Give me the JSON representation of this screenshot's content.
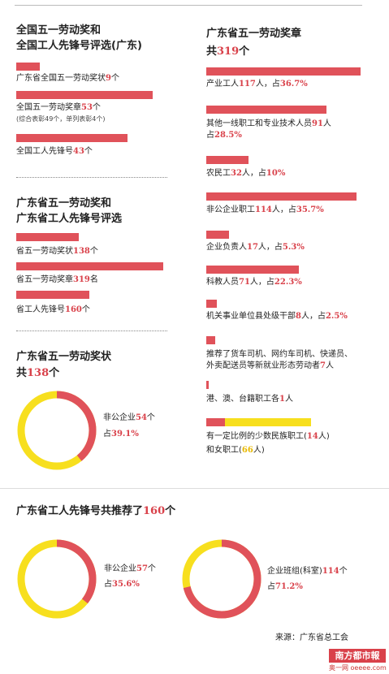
{
  "left": {
    "national": {
      "title1": "全国五一劳动奖和",
      "title2": "全国工人先锋号评选(广东)",
      "items": [
        {
          "pre": "广东省全国五一劳动奖状",
          "num": "9",
          "suf": "个",
          "value": 9
        },
        {
          "pre": "全国五一劳动奖章",
          "num": "53",
          "suf": "个",
          "value": 53,
          "note": "(综合表彰49个，单列表彰4个)"
        },
        {
          "pre": "全国工人先锋号",
          "num": "43",
          "suf": "个",
          "value": 43
        }
      ]
    },
    "provincial": {
      "title1": "广东省五一劳动奖和",
      "title2": "广东省工人先锋号评选",
      "items": [
        {
          "pre": "省五一劳动奖状",
          "num": "138",
          "suf": "个",
          "value": 138
        },
        {
          "pre": "省五一劳动奖章",
          "num": "319",
          "suf": "名",
          "value": 319
        },
        {
          "pre": "省工人先锋号",
          "num": "160",
          "suf": "个",
          "value": 160
        }
      ]
    },
    "award_donut": {
      "title": "广东省五一劳动奖状",
      "total_pre": "共",
      "total_num": "138",
      "total_suf": "个",
      "label_pre": "非公企业",
      "label_num": "54",
      "label_suf": "个",
      "pct_pre": "占",
      "pct_num": "39.1%",
      "percent": 39.1
    }
  },
  "right": {
    "title1": "广东省五一劳动奖章",
    "total_pre": "共",
    "total_num": "319",
    "total_suf": "个",
    "items": [
      {
        "pre": "产业工人",
        "num": "117",
        "mid": "人，占",
        "pct": "36.7%",
        "value": 117
      },
      {
        "pre": "其他一线职工和专业技术人员",
        "num": "91",
        "mid": "人",
        "line2_pre": "占",
        "pct": "28.5%",
        "value": 91
      },
      {
        "pre": "农民工",
        "num": "32",
        "mid": "人，占",
        "pct": "10%",
        "value": 32
      },
      {
        "pre": "非公企业职工",
        "num": "114",
        "mid": "人，占",
        "pct": "35.7%",
        "value": 114
      },
      {
        "pre": "企业负责人",
        "num": "17",
        "mid": "人，占",
        "pct": "5.3%",
        "value": 17
      },
      {
        "pre": "科教人员",
        "num": "71",
        "mid": "人，占",
        "pct": "22.3%",
        "value": 71
      },
      {
        "pre": "机关事业单位县处级干部",
        "num": "8",
        "mid": "人，占",
        "pct": "2.5%",
        "value": 8
      },
      {
        "line1": "推荐了货车司机、网约车司机、快递员、",
        "pre": "外卖配送员等新就业形态劳动者",
        "num": "7",
        "mid": "人",
        "value": 7
      },
      {
        "pre": "港、澳、台籍职工各",
        "num": "1",
        "mid": "人",
        "value": 1
      }
    ],
    "minority": {
      "pre": "有一定比例的少数民族职工(",
      "num": "14",
      "suf": "人)",
      "pre2": "和女职工(",
      "num2": "66",
      "suf2": "人)",
      "value_minority": 14,
      "value_women": 66
    }
  },
  "bottom": {
    "title_pre": "广东省工人先锋号共推荐了",
    "title_num": "160",
    "title_suf": "个",
    "donut1": {
      "pre": "非公企业",
      "num": "57",
      "suf": "个",
      "pct_pre": "占",
      "pct": "35.6%",
      "percent": 35.6
    },
    "donut2": {
      "pre": "企业班组(科室)",
      "num": "114",
      "suf": "个",
      "pct_pre": "占",
      "pct": "71.2%",
      "percent": 71.2
    }
  },
  "source": "来源：广东省总工会",
  "logo": "南方都市報",
  "logo_sub": "奥一网 oeeee.com",
  "colors": {
    "red": "#e0525a",
    "yellow": "#f7df1e",
    "text_red": "#d9414a"
  },
  "chart_data": [
    {
      "type": "bar",
      "title": "全国五一劳动奖和全国工人先锋号评选(广东)",
      "categories": [
        "广东省全国五一劳动奖状",
        "全国五一劳动奖章",
        "全国工人先锋号"
      ],
      "values": [
        9,
        53,
        43
      ]
    },
    {
      "type": "bar",
      "title": "广东省五一劳动奖和广东省工人先锋号评选",
      "categories": [
        "省五一劳动奖状",
        "省五一劳动奖章",
        "省工人先锋号"
      ],
      "values": [
        138,
        319,
        160
      ]
    },
    {
      "type": "bar",
      "title": "广东省五一劳动奖章共319个",
      "categories": [
        "产业工人",
        "其他一线职工和专业技术人员",
        "农民工",
        "非公企业职工",
        "企业负责人",
        "科教人员",
        "机关事业单位县处级干部",
        "新就业形态劳动者",
        "港、澳、台籍职工",
        "少数民族职工",
        "女职工"
      ],
      "values": [
        117,
        91,
        32,
        114,
        17,
        71,
        8,
        7,
        1,
        14,
        66
      ]
    },
    {
      "type": "pie",
      "title": "广东省五一劳动奖状共138个",
      "labels": [
        "非公企业"
      ],
      "values": [
        39.1
      ]
    },
    {
      "type": "pie",
      "title": "广东省工人先锋号共推荐了160个",
      "labels": [
        "非公企业"
      ],
      "values": [
        35.6
      ]
    },
    {
      "type": "pie",
      "title": "广东省工人先锋号共推荐了160个",
      "labels": [
        "企业班组(科室)"
      ],
      "values": [
        71.2
      ]
    }
  ]
}
